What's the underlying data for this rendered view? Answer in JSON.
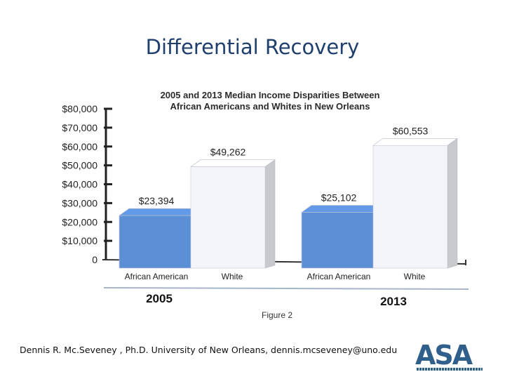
{
  "slide": {
    "title": "Differential Recovery",
    "footer": "Dennis R. Mc.Seveney , Ph.D. University of New Orleans, dennis.mcseveney@uno.edu",
    "logo_text": "ASA"
  },
  "chart_data": {
    "type": "bar",
    "title": "2005 and 2013 Median Income Disparities Between African Americans and Whites in New Orleans",
    "title_lines": [
      "2005 and 2013 Median Income Disparities Between",
      "African Americans and Whites in New Orleans"
    ],
    "caption": "Figure 2",
    "ylim": [
      0,
      80000
    ],
    "yticks": [
      "0",
      "$10,000",
      "$20,000",
      "$30,000",
      "$40,000",
      "$50,000",
      "$60,000",
      "$70,000",
      "$80,000"
    ],
    "groups": [
      "2005",
      "2013"
    ],
    "bars": [
      {
        "group": "2005",
        "category": "African American",
        "value": 23394,
        "label": "$23,394",
        "color": "#5b8fd6"
      },
      {
        "group": "2005",
        "category": "White",
        "value": 49262,
        "label": "$49,262",
        "color": "#f4f5fa"
      },
      {
        "group": "2013",
        "category": "African American",
        "value": 25102,
        "label": "$25,102",
        "color": "#5b8fd6"
      },
      {
        "group": "2013",
        "category": "White",
        "value": 60553,
        "label": "$60,553",
        "color": "#f4f5fa"
      }
    ]
  }
}
